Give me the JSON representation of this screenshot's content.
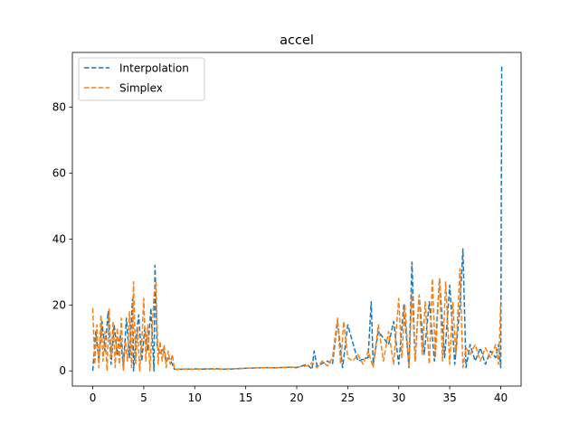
{
  "chart_data": {
    "type": "line",
    "title": "accel",
    "xlabel": "",
    "ylabel": "",
    "xlim": [
      -2.0,
      42.0
    ],
    "ylim": [
      -4.6,
      96.6
    ],
    "xticks": [
      0,
      5,
      10,
      15,
      20,
      25,
      30,
      35,
      40
    ],
    "yticks": [
      0,
      20,
      40,
      60,
      80
    ],
    "grid": false,
    "legend_position": "top-left",
    "series": [
      {
        "name": "Interpolation",
        "color": "#1f77b4",
        "linestyle": "dashed",
        "x": [
          0,
          0.3,
          0.6,
          0.9,
          1.2,
          1.5,
          1.8,
          2.1,
          2.4,
          2.7,
          3.0,
          3.3,
          3.6,
          3.9,
          4.0,
          4.2,
          4.5,
          4.8,
          5.1,
          5.4,
          5.7,
          6.0,
          6.1,
          6.3,
          6.6,
          6.9,
          7.2,
          7.5,
          7.8,
          8.0,
          9.0,
          10.0,
          11.0,
          12.0,
          13.0,
          14.0,
          15.0,
          16.0,
          17.0,
          18.0,
          19.0,
          20.0,
          21.0,
          21.5,
          21.7,
          22.0,
          23.0,
          23.5,
          24.0,
          24.5,
          25.0,
          26.0,
          27.0,
          27.3,
          27.5,
          28.0,
          29.0,
          29.5,
          30.0,
          30.5,
          31.0,
          31.3,
          31.6,
          32.0,
          32.5,
          33.0,
          33.5,
          34.0,
          34.5,
          35.0,
          35.5,
          36.0,
          36.3,
          36.6,
          37.0,
          37.5,
          38.0,
          38.5,
          39.0,
          39.5,
          39.8,
          40.0,
          40.1
        ],
        "y": [
          0,
          12,
          3,
          15,
          6,
          18,
          2,
          14,
          5,
          11,
          1,
          16,
          4,
          22,
          0,
          9,
          17,
          3,
          13,
          6,
          19,
          0,
          32,
          8,
          5,
          7,
          3,
          4,
          2,
          0.5,
          0.5,
          0.6,
          0.5,
          0.7,
          0.5,
          0.6,
          0.8,
          0.9,
          1.0,
          0.9,
          1.1,
          1.0,
          2.0,
          0.5,
          6.0,
          1.5,
          3.0,
          2.0,
          15.0,
          1.0,
          14.0,
          3.0,
          4.0,
          21.0,
          2.0,
          12.0,
          8.0,
          15.0,
          2.0,
          20.0,
          1.0,
          33.0,
          3.0,
          23.0,
          5.0,
          21.0,
          3.0,
          28.0,
          4.0,
          26.0,
          2.0,
          20.0,
          37.0,
          1.0,
          8.0,
          3.0,
          7.0,
          2.0,
          6.0,
          4.0,
          8.0,
          1.0,
          93.0
        ]
      },
      {
        "name": "Simplex",
        "color": "#ff7f0e",
        "linestyle": "dashed",
        "x": [
          0,
          0.2,
          0.4,
          0.6,
          0.8,
          1.0,
          1.2,
          1.4,
          1.6,
          1.8,
          2.0,
          2.2,
          2.4,
          2.6,
          2.8,
          3.0,
          3.2,
          3.4,
          3.6,
          3.8,
          4.0,
          4.2,
          4.4,
          4.6,
          4.8,
          5.0,
          5.2,
          5.4,
          5.6,
          5.8,
          6.0,
          6.2,
          6.4,
          6.6,
          6.8,
          7.0,
          7.2,
          7.4,
          7.6,
          7.8,
          8.0,
          9.0,
          10.0,
          11.0,
          12.0,
          13.0,
          14.0,
          15.0,
          16.0,
          17.0,
          18.0,
          19.0,
          20.0,
          21.0,
          21.5,
          22.0,
          22.5,
          23.0,
          23.5,
          24.0,
          24.3,
          24.6,
          25.0,
          25.5,
          26.0,
          26.5,
          27.0,
          27.5,
          28.0,
          28.5,
          29.0,
          29.5,
          30.0,
          30.3,
          30.6,
          31.0,
          31.3,
          31.6,
          32.0,
          32.3,
          32.6,
          33.0,
          33.3,
          33.6,
          34.0,
          34.3,
          34.6,
          35.0,
          35.3,
          35.6,
          36.0,
          36.3,
          36.6,
          37.0,
          37.5,
          38.0,
          38.5,
          39.0,
          39.5,
          39.8,
          40.0
        ],
        "y": [
          19,
          2,
          14,
          1,
          17,
          3,
          12,
          0,
          19,
          4,
          15,
          1,
          13,
          2,
          16,
          0,
          9,
          3,
          18,
          1,
          27,
          2,
          13,
          0,
          9,
          22,
          3,
          14,
          0,
          11,
          23,
          27,
          2,
          9,
          3,
          8,
          1,
          6,
          2,
          5,
          0.5,
          0.6,
          0.5,
          0.7,
          0.5,
          0.6,
          0.7,
          0.8,
          0.9,
          1.0,
          1.0,
          1.1,
          1.2,
          1.5,
          2.5,
          1.0,
          3.0,
          1.5,
          4.0,
          16.0,
          2.0,
          15.0,
          4.0,
          3.0,
          5.0,
          2.0,
          6.0,
          1.0,
          14.0,
          3.0,
          12.0,
          2.0,
          22.0,
          4.0,
          20.0,
          1.0,
          24.0,
          3.0,
          23.0,
          5.0,
          21.0,
          2.0,
          28.0,
          4.0,
          28.0,
          3.0,
          27.0,
          2.0,
          21.0,
          5.0,
          31.0,
          1.0,
          7.0,
          5.0,
          8.0,
          3.0,
          7.0,
          4.0,
          8.0,
          2.0,
          21.0
        ]
      }
    ]
  }
}
